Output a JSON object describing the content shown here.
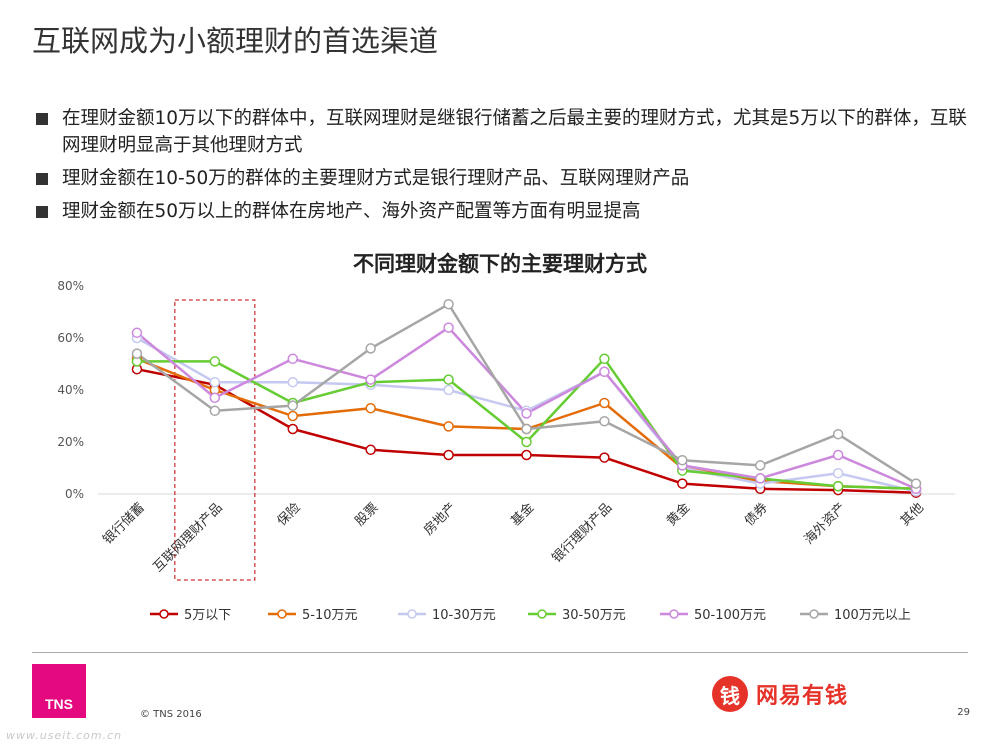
{
  "slide": {
    "title": "互联网成为小额理财的首选渠道",
    "bullets": [
      "在理财金额10万以下的群体中，互联网理财是继银行储蓄之后最主要的理财方式，尤其是5万以下的群体，互联网理财明显高于其他理财方式",
      "理财金额在10-50万的群体的主要理财方式是银行理财产品、互联网理财产品",
      "理财金额在50万以上的群体在房地产、海外资产配置等方面有明显提高"
    ]
  },
  "chart_data": {
    "type": "line",
    "title": "不同理财金额下的主要理财方式",
    "categories": [
      "银行储蓄",
      "互联网理财产品",
      "保险",
      "股票",
      "房地产",
      "基金",
      "银行理财产品",
      "黄金",
      "债券",
      "海外资产",
      "其他"
    ],
    "yticks": [
      "80%",
      "60%",
      "40%",
      "20%",
      "0%"
    ],
    "ylim": [
      0,
      80
    ],
    "legend_position": "bottom",
    "highlight_category": "互联网理财产品",
    "series": [
      {
        "name": "5万以下",
        "color": "#c00000",
        "values": [
          48,
          42,
          25,
          17,
          15,
          15,
          14,
          4,
          2,
          1.5,
          0.5
        ]
      },
      {
        "name": "5-10万元",
        "color": "#e36c09",
        "values": [
          52,
          40,
          30,
          33,
          26,
          25,
          35,
          10,
          5,
          3,
          2
        ]
      },
      {
        "name": "10-30万元",
        "color": "#c5c9f0",
        "values": [
          60,
          43,
          43,
          42,
          40,
          32,
          47,
          10,
          4,
          8,
          1
        ]
      },
      {
        "name": "30-50万元",
        "color": "#66cc33",
        "values": [
          51,
          51,
          35,
          43,
          44,
          20,
          52,
          9,
          6,
          3,
          2
        ]
      },
      {
        "name": "50-100万元",
        "color": "#cc88dd",
        "values": [
          62,
          37,
          52,
          44,
          64,
          31,
          47,
          11,
          6,
          15,
          2
        ]
      },
      {
        "name": "100万元以上",
        "color": "#a6a6a6",
        "values": [
          54,
          32,
          34,
          56,
          73,
          25,
          28,
          13,
          11,
          23,
          4
        ]
      }
    ]
  },
  "footer": {
    "logo_text": "TNS",
    "copyright": "© TNS 2016",
    "page_number": "29",
    "partner_logo_glyph": "钱",
    "partner_logo_text": "网易有钱",
    "watermark": "www.useit.com.cn"
  }
}
